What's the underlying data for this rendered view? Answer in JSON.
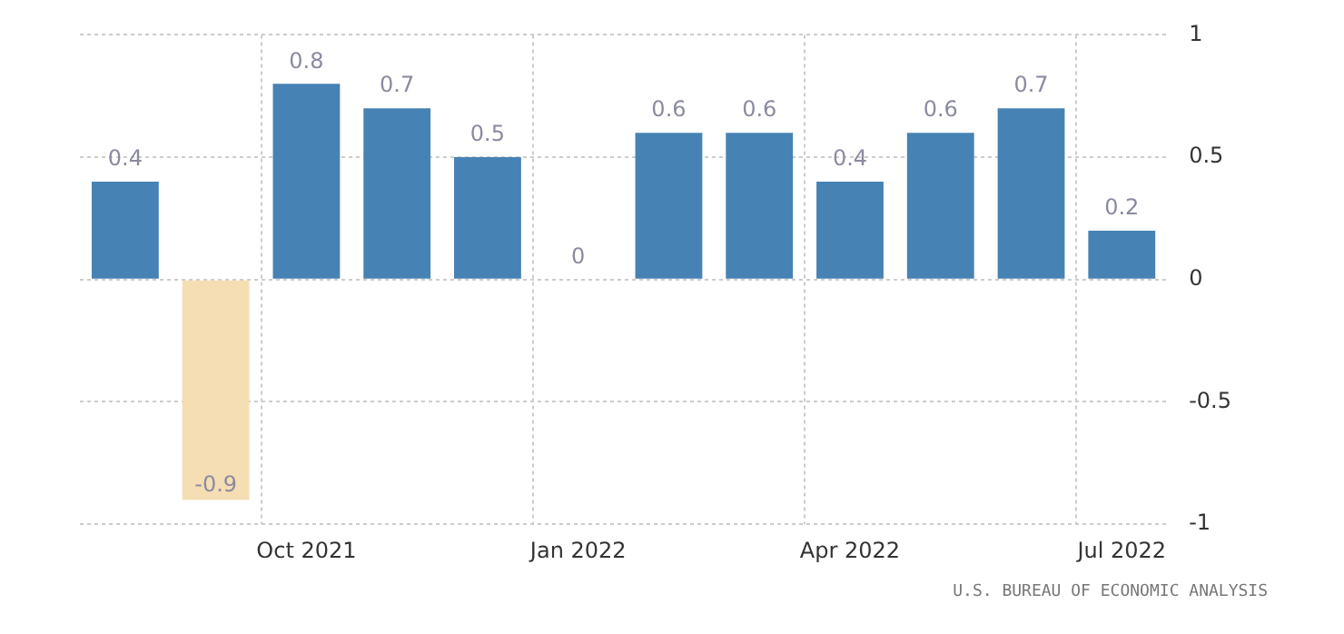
{
  "chart_data": {
    "type": "bar",
    "categories": [
      null,
      null,
      "Oct 2021",
      null,
      null,
      "Jan 2022",
      null,
      null,
      "Apr 2022",
      null,
      null,
      "Jul 2022"
    ],
    "values": [
      0.4,
      -0.9,
      0.8,
      0.7,
      0.5,
      0,
      0.6,
      0.6,
      0.4,
      0.6,
      0.7,
      0.2
    ],
    "colors": [
      "#4682b4",
      "#f5deb3",
      "#4682b4",
      "#4682b4",
      "#4682b4",
      "#4682b4",
      "#4682b4",
      "#4682b4",
      "#4682b4",
      "#4682b4",
      "#4682b4",
      "#4682b4"
    ],
    "ylim": [
      -1,
      1
    ],
    "yticks": [
      -1,
      -0.5,
      0,
      0.5,
      1
    ],
    "grid": true,
    "data_labels": true,
    "legend": false,
    "annotations": [
      "U.S. BUREAU OF ECONOMIC ANALYSIS"
    ]
  }
}
